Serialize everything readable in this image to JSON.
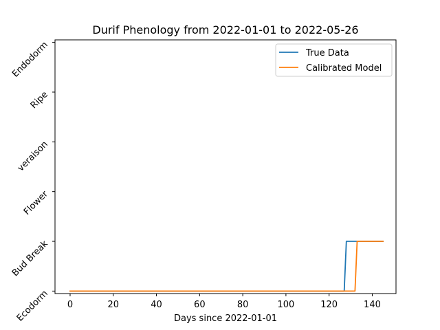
{
  "chart_data": {
    "type": "line",
    "title": "Durif Phenology from 2022-01-01 to 2022-05-26",
    "xlabel": "Days since 2022-01-01",
    "ylabel": "",
    "xlim": [
      -7,
      151
    ],
    "ylim": [
      -0.05,
      5.05
    ],
    "xticks": [
      0,
      20,
      40,
      60,
      80,
      100,
      120,
      140
    ],
    "y_categories": [
      "Ecodorm",
      "Bud Break",
      "Flower",
      "veraison",
      "Ripe",
      "Endodorm"
    ],
    "grid": false,
    "legend_position": "top-right",
    "series": [
      {
        "name": "True Data",
        "color": "#1f77b4",
        "x": [
          0,
          127,
          128,
          145
        ],
        "y": [
          0,
          0,
          1,
          1
        ]
      },
      {
        "name": "Calibrated Model",
        "color": "#ff7f0e",
        "x": [
          0,
          132,
          133,
          145
        ],
        "y": [
          0,
          0,
          1,
          1
        ]
      }
    ]
  }
}
